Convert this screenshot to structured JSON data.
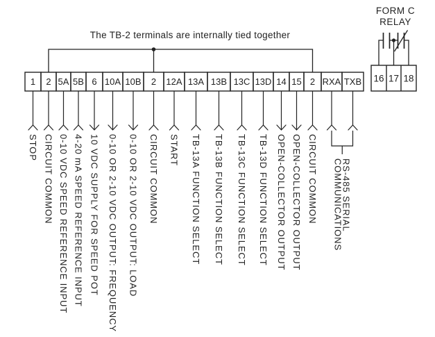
{
  "diagram": {
    "title": "The TB-2 terminals are internally tied together",
    "background": "#ffffff",
    "line_color": "#222222"
  },
  "tb2": {
    "terminals": [
      {
        "id": "1",
        "label": "STOP",
        "arrow": "input"
      },
      {
        "id": "2",
        "label": "CIRCUIT COMMON",
        "arrow": "input",
        "tied": true
      },
      {
        "id": "5A",
        "label": "0-10 VDC SPEED REFERENCE INPUT",
        "arrow": "input"
      },
      {
        "id": "5B",
        "label": "4-20 mA SPEED REFERENCE INPUT",
        "arrow": "input"
      },
      {
        "id": "6",
        "label": "10 VDC SUPPLY FOR SPEED POT",
        "arrow": "output"
      },
      {
        "id": "10A",
        "label": "0-10 OR 2-10 VDC OUTPUT: FREQUENCY",
        "arrow": "output"
      },
      {
        "id": "10B",
        "label": "0-10 OR 2-10 VDC OUTPUT: LOAD",
        "arrow": "output"
      },
      {
        "id": "2",
        "label": "CIRCUIT COMMON",
        "arrow": "input",
        "tied": true
      },
      {
        "id": "12A",
        "label": "START",
        "arrow": "input"
      },
      {
        "id": "13A",
        "label": "TB-13A FUNCTION SELECT",
        "arrow": "input"
      },
      {
        "id": "13B",
        "label": "TB-13B FUNCTION SELECT",
        "arrow": "input"
      },
      {
        "id": "13C",
        "label": "TB-13C FUNCTION SELECT",
        "arrow": "input"
      },
      {
        "id": "13D",
        "label": "TB-13D FUNCTION SELECT",
        "arrow": "input"
      },
      {
        "id": "14",
        "label": "OPEN-COLLECTOR OUTPUT",
        "arrow": "output"
      },
      {
        "id": "15",
        "label": "OPEN-COLLECTOR OUTPUT",
        "arrow": "output"
      },
      {
        "id": "2",
        "label": "CIRCUIT COMMON",
        "arrow": "input",
        "tied": true
      },
      {
        "id": "RXA",
        "label": "",
        "arrow": "input",
        "serial": true
      },
      {
        "id": "TXB",
        "label": "",
        "arrow": "input",
        "serial": true
      }
    ],
    "serial_label_lines": [
      "RS-485 SERIAL",
      "COMMUNICATIONS"
    ]
  },
  "relay": {
    "title_lines": [
      "FORM C",
      "RELAY"
    ],
    "terminals": [
      "16",
      "17",
      "18"
    ]
  }
}
